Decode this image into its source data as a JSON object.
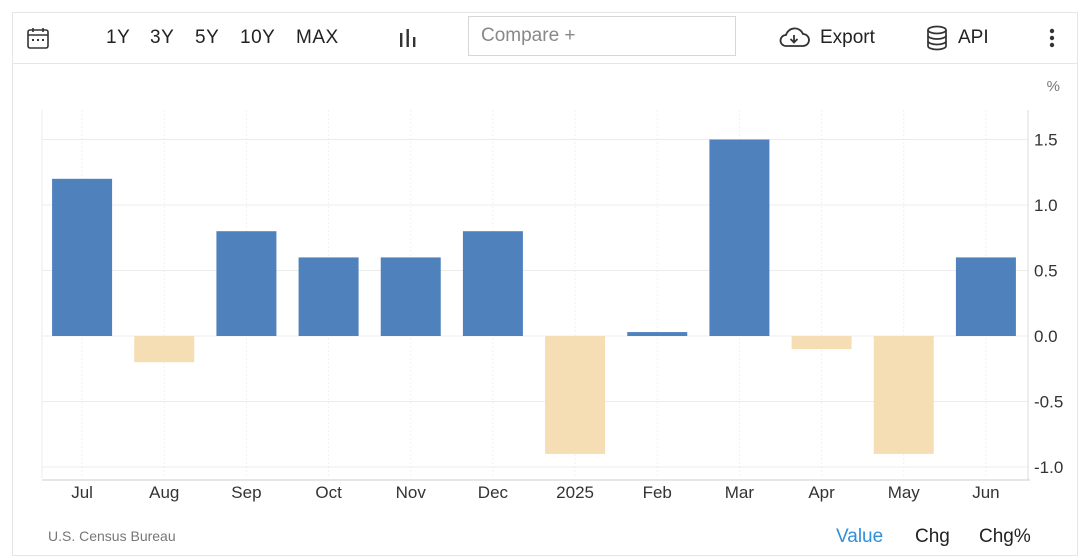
{
  "toolbar": {
    "calendar_icon": "calendar-icon",
    "ranges": [
      "1Y",
      "3Y",
      "5Y",
      "10Y",
      "MAX"
    ],
    "chart_type_icon": "bar-chart-icon",
    "compare_placeholder": "Compare +",
    "export_icon": "cloud-download-icon",
    "export_label": "Export",
    "api_icon": "database-icon",
    "api_label": "API",
    "more_icon": "vertical-dots-icon"
  },
  "chart_data": {
    "type": "bar",
    "unit_label": "%",
    "categories": [
      "Jul",
      "Aug",
      "Sep",
      "Oct",
      "Nov",
      "Dec",
      "2025",
      "Feb",
      "Mar",
      "Apr",
      "May",
      "Jun"
    ],
    "values": [
      1.2,
      -0.2,
      0.8,
      0.6,
      0.6,
      0.8,
      -0.9,
      0.03,
      1.5,
      -0.1,
      -0.9,
      0.6
    ],
    "ylim": [
      -1.0,
      1.7
    ],
    "yticks": [
      "1.5",
      "1.0",
      "0.5",
      "0.0",
      "-0.5",
      "-1.0"
    ],
    "ytick_values": [
      1.5,
      1.0,
      0.5,
      0.0,
      -0.5,
      -1.0
    ],
    "positive_color": "#4f81bd",
    "negative_color": "#f5deb3",
    "grid": true,
    "axis_position": "right"
  },
  "footer": {
    "source": "U.S. Census Bureau",
    "tabs": [
      "Value",
      "Chg",
      "Chg%"
    ],
    "active_tab": "Value",
    "active_color": "#2f8fdd"
  }
}
